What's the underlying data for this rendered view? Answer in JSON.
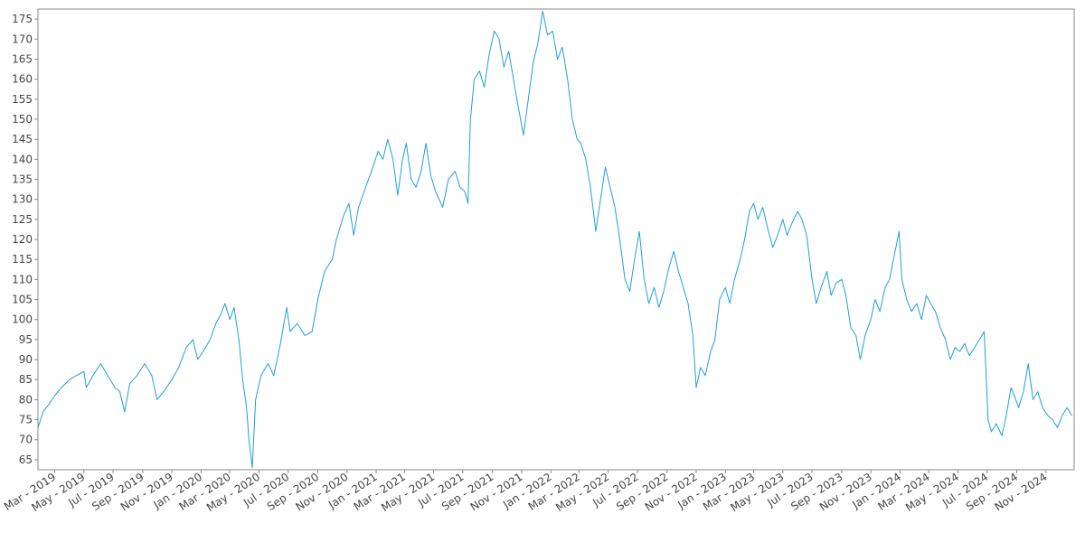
{
  "chart_data": {
    "type": "line",
    "title": "",
    "xlabel": "",
    "ylabel": "",
    "grid": false,
    "legend": "none",
    "line_color": "#1ea0d7",
    "xlim": [
      "2019-01-25",
      "2024-12-30"
    ],
    "ylim": [
      62.5,
      177.5
    ],
    "y_ticks": [
      65,
      70,
      75,
      80,
      85,
      90,
      95,
      100,
      105,
      110,
      115,
      120,
      125,
      130,
      135,
      140,
      145,
      150,
      155,
      160,
      165,
      170,
      175
    ],
    "x_ticks": [
      {
        "date": "2019-03-01",
        "label": "Mar - 2019"
      },
      {
        "date": "2019-05-01",
        "label": "May - 2019"
      },
      {
        "date": "2019-07-01",
        "label": "Jul - 2019"
      },
      {
        "date": "2019-09-01",
        "label": "Sep - 2019"
      },
      {
        "date": "2019-11-01",
        "label": "Nov - 2019"
      },
      {
        "date": "2020-01-01",
        "label": "Jan - 2020"
      },
      {
        "date": "2020-03-01",
        "label": "Mar - 2020"
      },
      {
        "date": "2020-05-01",
        "label": "May - 2020"
      },
      {
        "date": "2020-07-01",
        "label": "Jul - 2020"
      },
      {
        "date": "2020-09-01",
        "label": "Sep - 2020"
      },
      {
        "date": "2020-11-01",
        "label": "Nov - 2020"
      },
      {
        "date": "2021-01-01",
        "label": "Jan - 2021"
      },
      {
        "date": "2021-03-01",
        "label": "Mar - 2021"
      },
      {
        "date": "2021-05-01",
        "label": "May - 2021"
      },
      {
        "date": "2021-07-01",
        "label": "Jul - 2021"
      },
      {
        "date": "2021-09-01",
        "label": "Sep - 2021"
      },
      {
        "date": "2021-11-01",
        "label": "Nov - 2021"
      },
      {
        "date": "2022-01-01",
        "label": "Jan - 2022"
      },
      {
        "date": "2022-03-01",
        "label": "Mar - 2022"
      },
      {
        "date": "2022-05-01",
        "label": "May - 2022"
      },
      {
        "date": "2022-07-01",
        "label": "Jul - 2022"
      },
      {
        "date": "2022-09-01",
        "label": "Sep - 2022"
      },
      {
        "date": "2022-11-01",
        "label": "Nov - 2022"
      },
      {
        "date": "2023-01-01",
        "label": "Jan - 2023"
      },
      {
        "date": "2023-03-01",
        "label": "Mar - 2023"
      },
      {
        "date": "2023-05-01",
        "label": "May - 2023"
      },
      {
        "date": "2023-07-01",
        "label": "Jul - 2023"
      },
      {
        "date": "2023-09-01",
        "label": "Sep - 2023"
      },
      {
        "date": "2023-11-01",
        "label": "Nov - 2023"
      },
      {
        "date": "2024-01-01",
        "label": "Jan - 2024"
      },
      {
        "date": "2024-03-01",
        "label": "Mar - 2024"
      },
      {
        "date": "2024-05-01",
        "label": "May - 2024"
      },
      {
        "date": "2024-07-01",
        "label": "Jul - 2024"
      },
      {
        "date": "2024-09-01",
        "label": "Sep - 2024"
      },
      {
        "date": "2024-11-01",
        "label": "Nov - 2024"
      }
    ],
    "series": [
      {
        "color": "#1ea0d7",
        "points": [
          [
            "2019-01-25",
            73
          ],
          [
            "2019-02-05",
            77
          ],
          [
            "2019-02-18",
            79
          ],
          [
            "2019-03-01",
            81
          ],
          [
            "2019-03-15",
            83
          ],
          [
            "2019-04-01",
            85
          ],
          [
            "2019-04-15",
            86
          ],
          [
            "2019-05-01",
            87
          ],
          [
            "2019-05-06",
            83
          ],
          [
            "2019-05-20",
            86
          ],
          [
            "2019-06-05",
            89
          ],
          [
            "2019-06-20",
            86
          ],
          [
            "2019-07-05",
            83
          ],
          [
            "2019-07-15",
            82
          ],
          [
            "2019-07-25",
            77
          ],
          [
            "2019-08-05",
            84
          ],
          [
            "2019-08-20",
            86
          ],
          [
            "2019-09-05",
            89
          ],
          [
            "2019-09-20",
            86
          ],
          [
            "2019-10-01",
            80
          ],
          [
            "2019-10-15",
            82
          ],
          [
            "2019-11-01",
            85
          ],
          [
            "2019-11-15",
            88
          ],
          [
            "2019-12-01",
            93
          ],
          [
            "2019-12-15",
            95
          ],
          [
            "2019-12-25",
            90
          ],
          [
            "2020-01-05",
            92
          ],
          [
            "2020-01-20",
            95
          ],
          [
            "2020-02-01",
            99
          ],
          [
            "2020-02-10",
            101
          ],
          [
            "2020-02-20",
            104
          ],
          [
            "2020-03-01",
            100
          ],
          [
            "2020-03-10",
            103
          ],
          [
            "2020-03-20",
            95
          ],
          [
            "2020-03-28",
            85
          ],
          [
            "2020-04-05",
            78
          ],
          [
            "2020-04-10",
            70
          ],
          [
            "2020-04-17",
            63
          ],
          [
            "2020-04-24",
            80
          ],
          [
            "2020-05-05",
            86
          ],
          [
            "2020-05-20",
            89
          ],
          [
            "2020-06-01",
            86
          ],
          [
            "2020-06-15",
            94
          ],
          [
            "2020-06-28",
            103
          ],
          [
            "2020-07-05",
            97
          ],
          [
            "2020-07-20",
            99
          ],
          [
            "2020-08-05",
            96
          ],
          [
            "2020-08-20",
            97
          ],
          [
            "2020-09-01",
            105
          ],
          [
            "2020-09-15",
            112
          ],
          [
            "2020-10-01",
            115
          ],
          [
            "2020-10-10",
            120
          ],
          [
            "2020-10-25",
            126
          ],
          [
            "2020-11-05",
            129
          ],
          [
            "2020-11-15",
            121
          ],
          [
            "2020-11-25",
            128
          ],
          [
            "2020-12-10",
            133
          ],
          [
            "2020-12-25",
            138
          ],
          [
            "2021-01-05",
            142
          ],
          [
            "2021-01-15",
            140
          ],
          [
            "2021-01-25",
            145
          ],
          [
            "2021-02-05",
            140
          ],
          [
            "2021-02-15",
            131
          ],
          [
            "2021-02-25",
            140
          ],
          [
            "2021-03-05",
            144
          ],
          [
            "2021-03-15",
            135
          ],
          [
            "2021-03-25",
            133
          ],
          [
            "2021-04-05",
            137
          ],
          [
            "2021-04-15",
            144
          ],
          [
            "2021-04-25",
            136
          ],
          [
            "2021-05-05",
            132
          ],
          [
            "2021-05-20",
            128
          ],
          [
            "2021-06-01",
            135
          ],
          [
            "2021-06-15",
            137
          ],
          [
            "2021-06-25",
            133
          ],
          [
            "2021-07-05",
            132
          ],
          [
            "2021-07-12",
            129
          ],
          [
            "2021-07-17",
            150
          ],
          [
            "2021-07-25",
            160
          ],
          [
            "2021-08-05",
            162
          ],
          [
            "2021-08-15",
            158
          ],
          [
            "2021-08-25",
            166
          ],
          [
            "2021-09-05",
            172
          ],
          [
            "2021-09-15",
            170
          ],
          [
            "2021-09-25",
            163
          ],
          [
            "2021-10-05",
            167
          ],
          [
            "2021-10-15",
            160
          ],
          [
            "2021-10-25",
            153
          ],
          [
            "2021-11-05",
            146
          ],
          [
            "2021-11-15",
            155
          ],
          [
            "2021-11-25",
            164
          ],
          [
            "2021-12-05",
            169
          ],
          [
            "2021-12-15",
            177
          ],
          [
            "2021-12-25",
            171
          ],
          [
            "2022-01-05",
            172
          ],
          [
            "2022-01-15",
            165
          ],
          [
            "2022-01-25",
            168
          ],
          [
            "2022-02-05",
            160
          ],
          [
            "2022-02-15",
            150
          ],
          [
            "2022-02-25",
            145
          ],
          [
            "2022-03-05",
            144
          ],
          [
            "2022-03-15",
            140
          ],
          [
            "2022-03-25",
            133
          ],
          [
            "2022-04-05",
            122
          ],
          [
            "2022-04-15",
            130
          ],
          [
            "2022-04-25",
            138
          ],
          [
            "2022-05-05",
            133
          ],
          [
            "2022-05-15",
            128
          ],
          [
            "2022-05-25",
            120
          ],
          [
            "2022-06-05",
            110
          ],
          [
            "2022-06-15",
            107
          ],
          [
            "2022-06-25",
            115
          ],
          [
            "2022-07-05",
            122
          ],
          [
            "2022-07-15",
            110
          ],
          [
            "2022-07-25",
            104
          ],
          [
            "2022-08-05",
            108
          ],
          [
            "2022-08-15",
            103
          ],
          [
            "2022-08-25",
            107
          ],
          [
            "2022-09-05",
            113
          ],
          [
            "2022-09-15",
            117
          ],
          [
            "2022-09-25",
            112
          ],
          [
            "2022-10-05",
            108
          ],
          [
            "2022-10-15",
            104
          ],
          [
            "2022-10-25",
            96
          ],
          [
            "2022-11-01",
            83
          ],
          [
            "2022-11-10",
            88
          ],
          [
            "2022-11-20",
            86
          ],
          [
            "2022-12-01",
            92
          ],
          [
            "2022-12-10",
            95
          ],
          [
            "2022-12-20",
            105
          ],
          [
            "2023-01-01",
            108
          ],
          [
            "2023-01-10",
            104
          ],
          [
            "2023-01-20",
            110
          ],
          [
            "2023-02-01",
            115
          ],
          [
            "2023-02-10",
            120
          ],
          [
            "2023-02-20",
            127
          ],
          [
            "2023-03-01",
            129
          ],
          [
            "2023-03-10",
            125
          ],
          [
            "2023-03-20",
            128
          ],
          [
            "2023-04-01",
            122
          ],
          [
            "2023-04-10",
            118
          ],
          [
            "2023-04-20",
            121
          ],
          [
            "2023-05-01",
            125
          ],
          [
            "2023-05-10",
            121
          ],
          [
            "2023-05-20",
            124
          ],
          [
            "2023-06-01",
            127
          ],
          [
            "2023-06-10",
            125
          ],
          [
            "2023-06-20",
            121
          ],
          [
            "2023-07-01",
            110
          ],
          [
            "2023-07-10",
            104
          ],
          [
            "2023-07-20",
            108
          ],
          [
            "2023-08-01",
            112
          ],
          [
            "2023-08-10",
            106
          ],
          [
            "2023-08-20",
            109
          ],
          [
            "2023-09-01",
            110
          ],
          [
            "2023-09-10",
            106
          ],
          [
            "2023-09-20",
            98
          ],
          [
            "2023-10-01",
            96
          ],
          [
            "2023-10-10",
            90
          ],
          [
            "2023-10-20",
            96
          ],
          [
            "2023-11-01",
            100
          ],
          [
            "2023-11-10",
            105
          ],
          [
            "2023-11-20",
            102
          ],
          [
            "2023-12-01",
            108
          ],
          [
            "2023-12-10",
            110
          ],
          [
            "2023-12-20",
            116
          ],
          [
            "2023-12-30",
            122
          ],
          [
            "2024-01-05",
            110
          ],
          [
            "2024-01-15",
            105
          ],
          [
            "2024-01-25",
            102
          ],
          [
            "2024-02-05",
            104
          ],
          [
            "2024-02-15",
            100
          ],
          [
            "2024-02-25",
            106
          ],
          [
            "2024-03-05",
            104
          ],
          [
            "2024-03-15",
            102
          ],
          [
            "2024-03-25",
            98
          ],
          [
            "2024-04-05",
            95
          ],
          [
            "2024-04-15",
            90
          ],
          [
            "2024-04-25",
            93
          ],
          [
            "2024-05-05",
            92
          ],
          [
            "2024-05-15",
            94
          ],
          [
            "2024-05-25",
            91
          ],
          [
            "2024-06-05",
            93
          ],
          [
            "2024-06-15",
            95
          ],
          [
            "2024-06-25",
            97
          ],
          [
            "2024-07-03",
            75
          ],
          [
            "2024-07-10",
            72
          ],
          [
            "2024-07-20",
            74
          ],
          [
            "2024-08-01",
            71
          ],
          [
            "2024-08-10",
            76
          ],
          [
            "2024-08-20",
            83
          ],
          [
            "2024-08-30",
            80
          ],
          [
            "2024-09-05",
            78
          ],
          [
            "2024-09-15",
            82
          ],
          [
            "2024-09-25",
            89
          ],
          [
            "2024-10-05",
            80
          ],
          [
            "2024-10-15",
            82
          ],
          [
            "2024-10-25",
            78
          ],
          [
            "2024-11-05",
            76
          ],
          [
            "2024-11-15",
            75
          ],
          [
            "2024-11-25",
            73
          ],
          [
            "2024-12-05",
            76
          ],
          [
            "2024-12-15",
            78
          ],
          [
            "2024-12-25",
            76
          ]
        ]
      }
    ]
  }
}
